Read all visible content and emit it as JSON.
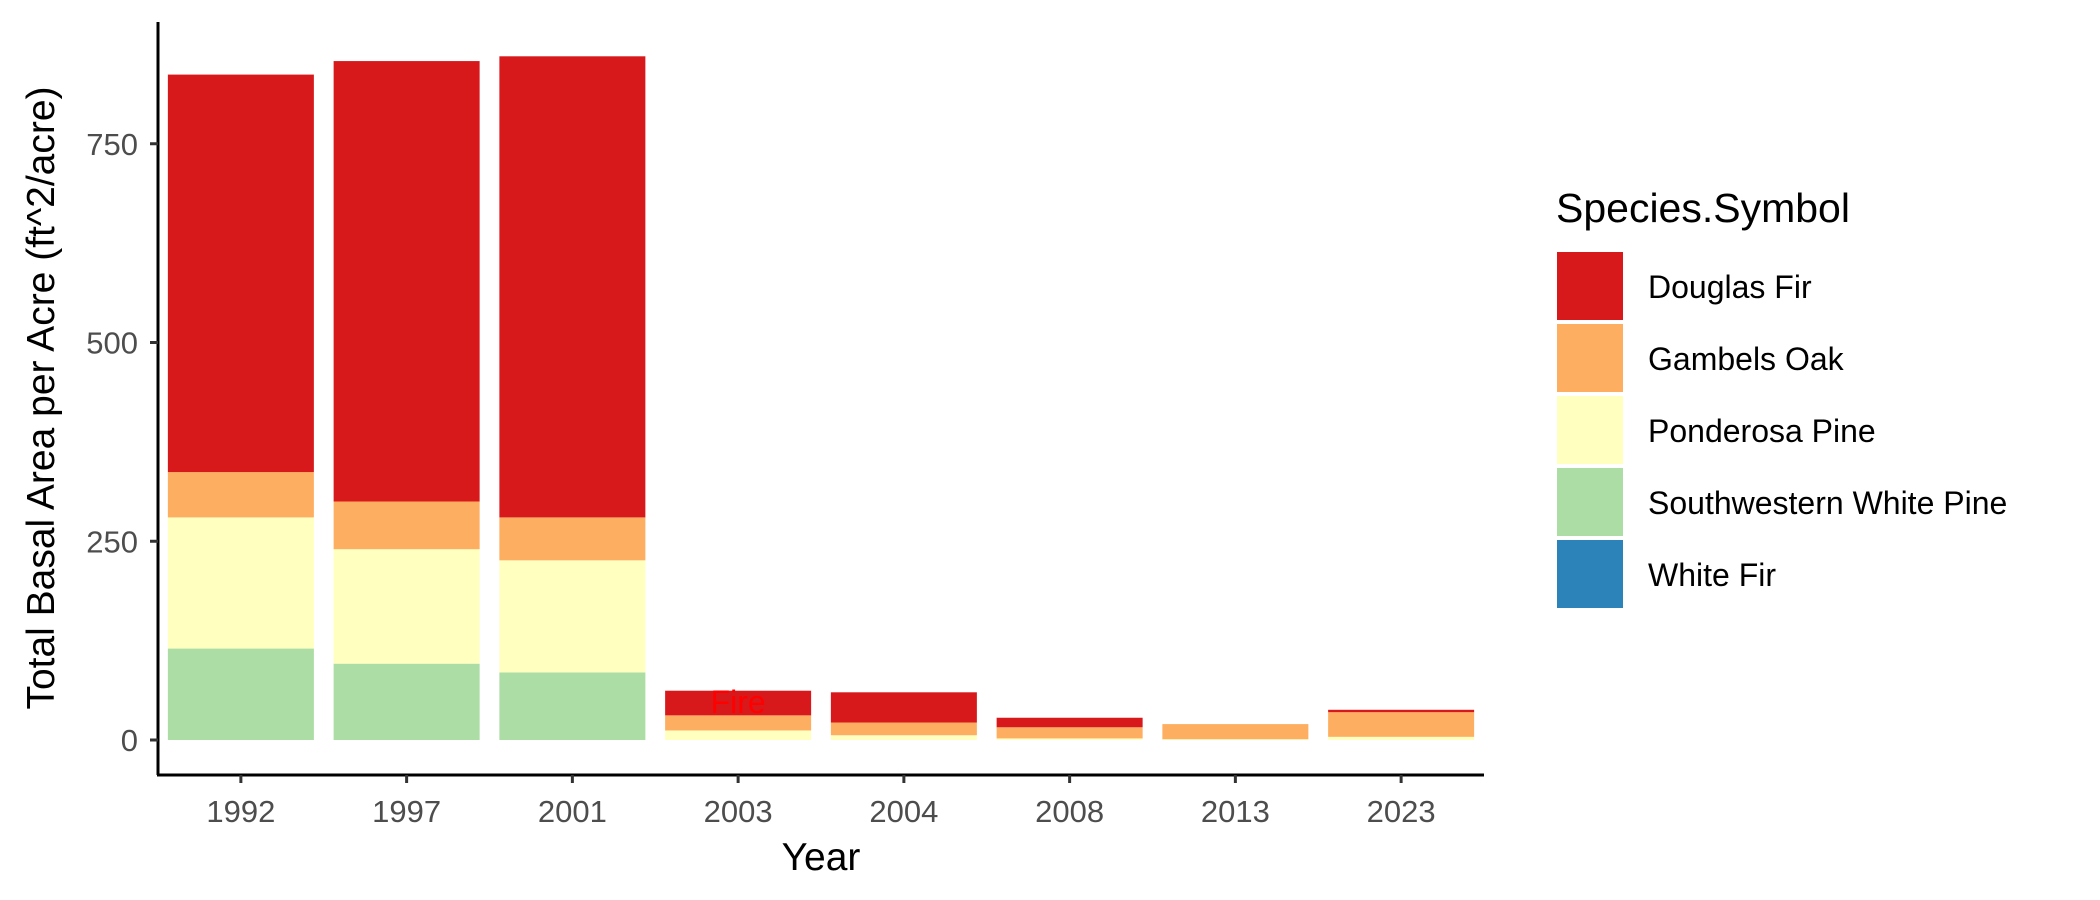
{
  "chart_data": {
    "type": "bar",
    "stacked": true,
    "title": "",
    "xlabel": "Year",
    "ylabel": "Total Basal Area per Acre (ft^2/acre)",
    "ylim": [
      0,
      860
    ],
    "yticks": [
      0,
      250,
      500,
      750
    ],
    "grid": false,
    "legend_title": "Species.Symbol",
    "legend_position": "right",
    "categories": [
      "1992",
      "1997",
      "2001",
      "2003",
      "2004",
      "2008",
      "2013",
      "2023"
    ],
    "series": [
      {
        "name": "Southwestern White Pine",
        "color": "#abdda4",
        "values": [
          115,
          96,
          85,
          0,
          0,
          0,
          0,
          0
        ]
      },
      {
        "name": "Ponderosa Pine",
        "color": "#ffffbf",
        "values": [
          165,
          144,
          141,
          12,
          6,
          2,
          1,
          4
        ]
      },
      {
        "name": "Gambels Oak",
        "color": "#fdae61",
        "values": [
          57,
          60,
          54,
          19,
          16,
          14,
          19,
          31
        ]
      },
      {
        "name": "Douglas Fir",
        "color": "#d7191c",
        "values": [
          500,
          554,
          580,
          31,
          38,
          12,
          0,
          3
        ]
      },
      {
        "name": "White Fir",
        "color": "#2b83ba",
        "values": [
          0,
          0,
          0,
          0,
          0,
          0,
          0,
          0
        ]
      }
    ],
    "legend_order": [
      "Douglas Fir",
      "Gambels Oak",
      "Ponderosa Pine",
      "Southwestern White Pine",
      "White Fir"
    ],
    "annotations": [
      {
        "text": "Fire",
        "category": "2003",
        "y": 48,
        "color": "#ff0000"
      }
    ]
  }
}
